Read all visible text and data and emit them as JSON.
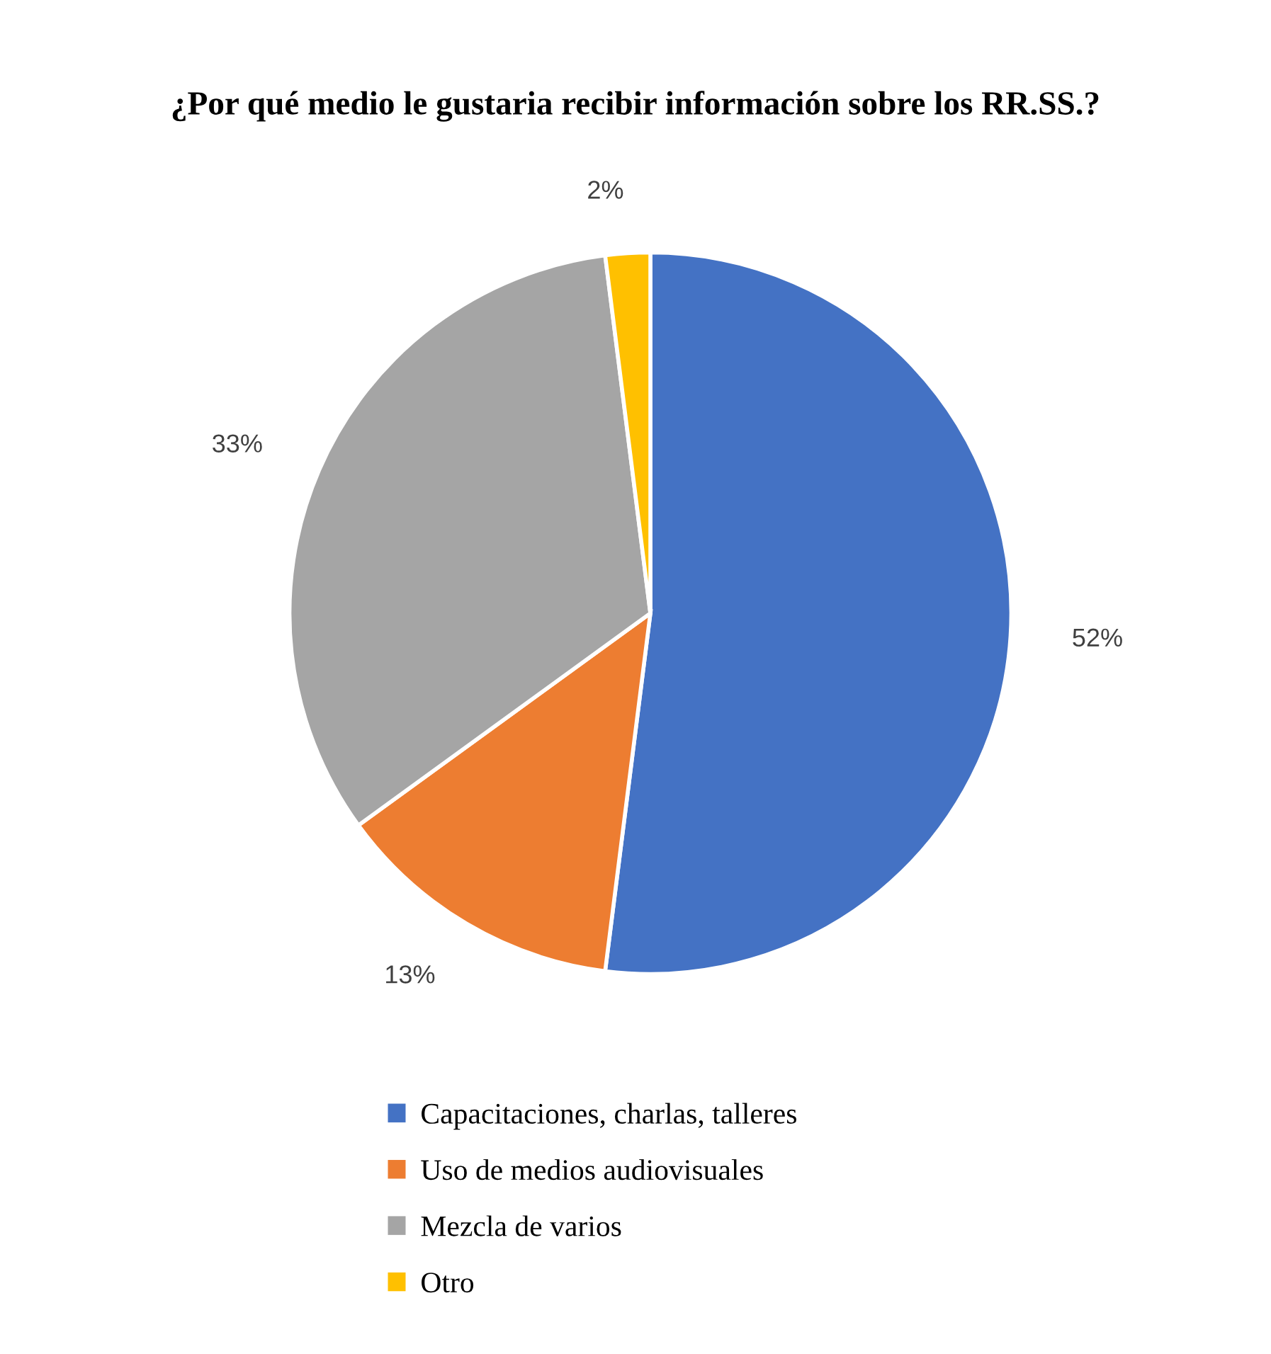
{
  "chart_data": {
    "type": "pie",
    "title": "¿Por qué medio le gustaria recibir información sobre los RR.SS.?",
    "categories": [
      "Capacitaciones, charlas, talleres",
      "Uso de medios audiovisuales",
      "Mezcla de varios",
      "Otro"
    ],
    "values": [
      52,
      13,
      33,
      2
    ],
    "colors": [
      "#4472c4",
      "#ed7d31",
      "#a5a5a5",
      "#ffc000"
    ],
    "value_labels": [
      "52%",
      "13%",
      "33%",
      "2%"
    ],
    "legend": "bottom"
  }
}
